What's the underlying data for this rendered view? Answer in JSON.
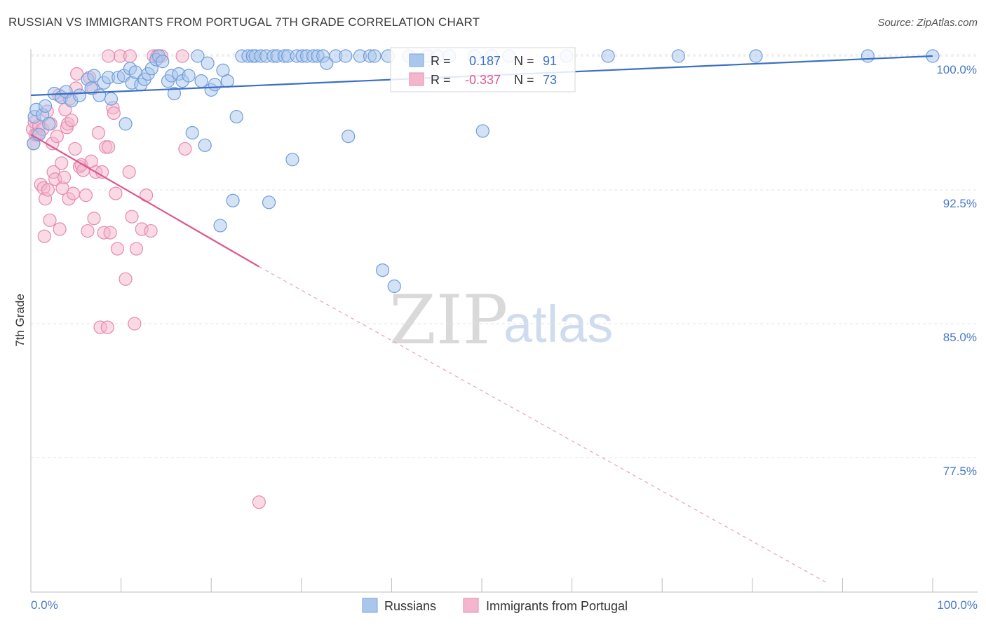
{
  "title": "RUSSIAN VS IMMIGRANTS FROM PORTUGAL 7TH GRADE CORRELATION CHART",
  "source": "Source: ZipAtlas.com",
  "watermark": {
    "zip": "ZIP",
    "atlas": "atlas"
  },
  "legend_box": {
    "row1": {
      "r_label": "R =",
      "r_value": "0.187",
      "n_label": "N =",
      "n_value": "91"
    },
    "row2": {
      "r_label": "R =",
      "r_value": "-0.337",
      "n_label": "N =",
      "n_value": "73"
    }
  },
  "bottom_legend": {
    "series1": "Russians",
    "series2": "Immigrants from Portugal"
  },
  "colors": {
    "blue": "#3b6fc4",
    "blue_fill": "#a9c6ec",
    "pink": "#e0578e",
    "pink_fill": "#f4b6cc",
    "grid": "#e3e3e3"
  },
  "chart_data": {
    "type": "scatter",
    "title": "RUSSIAN VS IMMIGRANTS FROM PORTUGAL 7TH GRADE CORRELATION CHART",
    "xlabel": "",
    "ylabel": "7th Grade",
    "xlim": [
      0,
      100
    ],
    "ylim": [
      70.5,
      100.8
    ],
    "x_tick_labels": [
      "0.0%",
      "100.0%"
    ],
    "y_ticks": [
      100.0,
      92.5,
      85.0,
      77.5
    ],
    "y_tick_labels": [
      "100.0%",
      "92.5%",
      "85.0%",
      "77.5%"
    ],
    "series": [
      {
        "name": "Russians",
        "color": "#3b6fc4",
        "r": 0.187,
        "n": 91,
        "trend": {
          "x": [
            0,
            100
          ],
          "y": [
            97.8,
            100.0
          ],
          "dashed_from": null
        },
        "points": [
          [
            0.3,
            95.1
          ],
          [
            0.4,
            96.6
          ],
          [
            0.6,
            97.0
          ],
          [
            0.9,
            95.6
          ],
          [
            1.3,
            96.7
          ],
          [
            1.6,
            97.2
          ],
          [
            2.0,
            96.2
          ],
          [
            2.6,
            97.9
          ],
          [
            3.4,
            97.7
          ],
          [
            3.9,
            98.0
          ],
          [
            4.5,
            97.5
          ],
          [
            5.4,
            97.8
          ],
          [
            6.3,
            98.7
          ],
          [
            6.7,
            98.2
          ],
          [
            7.0,
            98.9
          ],
          [
            7.6,
            97.8
          ],
          [
            8.1,
            98.5
          ],
          [
            8.6,
            98.8
          ],
          [
            8.9,
            97.6
          ],
          [
            9.7,
            98.8
          ],
          [
            10.3,
            98.9
          ],
          [
            10.5,
            96.2
          ],
          [
            11.0,
            99.3
          ],
          [
            11.2,
            98.5
          ],
          [
            11.6,
            99.1
          ],
          [
            12.2,
            98.4
          ],
          [
            12.6,
            98.7
          ],
          [
            13.0,
            99.0
          ],
          [
            13.4,
            99.3
          ],
          [
            13.9,
            99.8
          ],
          [
            14.2,
            100.0
          ],
          [
            14.6,
            99.7
          ],
          [
            15.2,
            98.6
          ],
          [
            15.6,
            98.9
          ],
          [
            15.9,
            97.9
          ],
          [
            16.4,
            99.0
          ],
          [
            16.8,
            98.6
          ],
          [
            17.5,
            98.9
          ],
          [
            17.9,
            95.7
          ],
          [
            18.5,
            100.0
          ],
          [
            18.9,
            98.6
          ],
          [
            19.3,
            95.0
          ],
          [
            19.6,
            99.6
          ],
          [
            20.0,
            98.1
          ],
          [
            20.4,
            98.4
          ],
          [
            21.0,
            90.5
          ],
          [
            21.3,
            99.2
          ],
          [
            21.8,
            98.6
          ],
          [
            22.4,
            91.9
          ],
          [
            22.8,
            96.6
          ],
          [
            23.4,
            100.0
          ],
          [
            24.1,
            100.0
          ],
          [
            24.6,
            100.0
          ],
          [
            24.9,
            100.0
          ],
          [
            25.5,
            100.0
          ],
          [
            26.1,
            100.0
          ],
          [
            26.4,
            91.8
          ],
          [
            26.9,
            100.0
          ],
          [
            27.3,
            100.0
          ],
          [
            28.1,
            100.0
          ],
          [
            28.5,
            100.0
          ],
          [
            29.0,
            94.2
          ],
          [
            29.5,
            100.0
          ],
          [
            30.1,
            100.0
          ],
          [
            30.6,
            100.0
          ],
          [
            31.3,
            100.0
          ],
          [
            31.8,
            100.0
          ],
          [
            32.4,
            100.0
          ],
          [
            32.8,
            99.6
          ],
          [
            33.8,
            100.0
          ],
          [
            34.9,
            100.0
          ],
          [
            35.2,
            95.5
          ],
          [
            36.5,
            100.0
          ],
          [
            37.6,
            100.0
          ],
          [
            38.1,
            100.0
          ],
          [
            39.0,
            88.0
          ],
          [
            39.6,
            100.0
          ],
          [
            40.3,
            87.1
          ],
          [
            41.9,
            100.0
          ],
          [
            44.0,
            100.0
          ],
          [
            45.1,
            100.0
          ],
          [
            46.4,
            100.0
          ],
          [
            49.2,
            100.0
          ],
          [
            50.1,
            95.8
          ],
          [
            51.1,
            100.0
          ],
          [
            53.0,
            100.0
          ],
          [
            59.4,
            100.0
          ],
          [
            64.0,
            100.0
          ],
          [
            71.8,
            100.0
          ],
          [
            80.4,
            100.0
          ],
          [
            92.8,
            100.0
          ],
          [
            100.0,
            100.0
          ]
        ]
      },
      {
        "name": "Immigrants from Portugal",
        "color": "#e0578e",
        "r": -0.337,
        "n": 73,
        "trend": {
          "x": [
            0,
            25.3,
            88.2
          ],
          "y": [
            95.6,
            88.2,
            70.5
          ],
          "dashed_from": 25.3
        },
        "points": [
          [
            0.2,
            95.9
          ],
          [
            0.3,
            95.1
          ],
          [
            0.4,
            96.3
          ],
          [
            0.5,
            95.6
          ],
          [
            0.7,
            95.6
          ],
          [
            0.9,
            96.1
          ],
          [
            1.1,
            92.8
          ],
          [
            1.3,
            95.9
          ],
          [
            1.4,
            92.6
          ],
          [
            1.5,
            89.9
          ],
          [
            1.6,
            92.0
          ],
          [
            1.8,
            96.9
          ],
          [
            1.9,
            92.5
          ],
          [
            2.1,
            90.8
          ],
          [
            2.2,
            96.2
          ],
          [
            2.4,
            95.1
          ],
          [
            2.5,
            93.5
          ],
          [
            2.7,
            93.1
          ],
          [
            2.9,
            95.5
          ],
          [
            3.1,
            97.8
          ],
          [
            3.2,
            90.3
          ],
          [
            3.4,
            94.0
          ],
          [
            3.5,
            92.6
          ],
          [
            3.7,
            93.2
          ],
          [
            3.8,
            97.0
          ],
          [
            4.0,
            96.0
          ],
          [
            4.1,
            96.2
          ],
          [
            4.2,
            92.0
          ],
          [
            4.3,
            97.6
          ],
          [
            4.5,
            96.4
          ],
          [
            4.7,
            92.3
          ],
          [
            4.9,
            94.8
          ],
          [
            5.0,
            98.2
          ],
          [
            5.1,
            99.0
          ],
          [
            5.4,
            93.8
          ],
          [
            5.6,
            93.9
          ],
          [
            5.8,
            93.6
          ],
          [
            6.1,
            92.2
          ],
          [
            6.3,
            90.2
          ],
          [
            6.5,
            98.8
          ],
          [
            6.7,
            94.1
          ],
          [
            6.9,
            98.2
          ],
          [
            7.0,
            90.9
          ],
          [
            7.2,
            93.5
          ],
          [
            7.5,
            95.7
          ],
          [
            7.7,
            84.8
          ],
          [
            7.9,
            93.5
          ],
          [
            8.1,
            90.1
          ],
          [
            8.3,
            94.9
          ],
          [
            8.5,
            84.8
          ],
          [
            8.6,
            94.9
          ],
          [
            8.8,
            90.1
          ],
          [
            9.1,
            97.1
          ],
          [
            9.2,
            96.8
          ],
          [
            9.4,
            92.3
          ],
          [
            9.6,
            89.2
          ],
          [
            9.9,
            100.0
          ],
          [
            10.5,
            87.5
          ],
          [
            10.9,
            93.5
          ],
          [
            11.0,
            100.0
          ],
          [
            11.2,
            91.0
          ],
          [
            11.5,
            85.0
          ],
          [
            11.7,
            89.2
          ],
          [
            12.3,
            90.3
          ],
          [
            12.8,
            92.2
          ],
          [
            13.3,
            90.2
          ],
          [
            13.6,
            100.0
          ],
          [
            14.0,
            100.0
          ],
          [
            14.5,
            100.0
          ],
          [
            16.8,
            100.0
          ],
          [
            17.1,
            94.8
          ],
          [
            25.3,
            75.0
          ],
          [
            8.6,
            100.0
          ]
        ]
      }
    ]
  }
}
